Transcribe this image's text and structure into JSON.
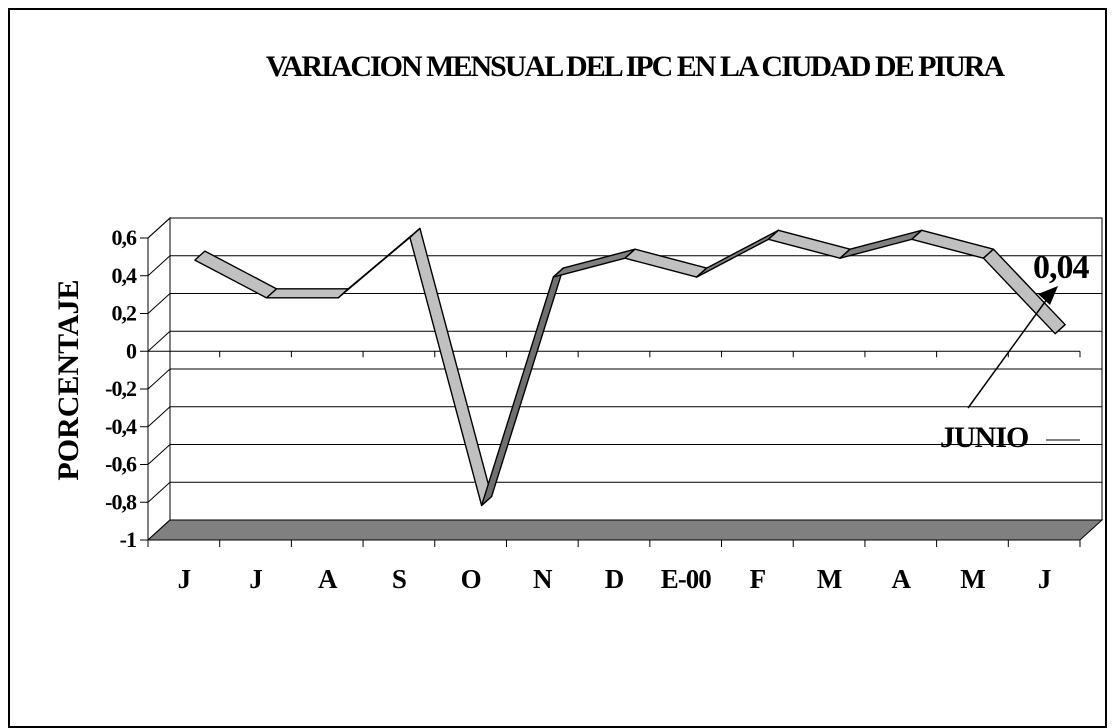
{
  "chart_data": {
    "type": "line",
    "title": "VARIACION MENSUAL DEL IPC EN LA CIUDAD DE PIURA",
    "ylabel": "PORCENTAJE",
    "xlabel": "",
    "categories": [
      "J",
      "J",
      "A",
      "S",
      "O",
      "N",
      "D",
      "E-00",
      "F",
      "M",
      "A",
      "M",
      "J"
    ],
    "values": [
      0.43,
      0.23,
      0.23,
      0.55,
      -0.87,
      0.34,
      0.44,
      0.34,
      0.54,
      0.44,
      0.54,
      0.44,
      0.04
    ],
    "ylim": [
      -1,
      0.6
    ],
    "yticks": [
      "0,6",
      "0,4",
      "0,2",
      "0",
      "-0,2",
      "-0,4",
      "-0,6",
      "-0,8",
      "-1"
    ],
    "grid": true,
    "three_d": true,
    "annotations": {
      "last_value": "0,04",
      "last_label": "JUNIO"
    },
    "colors": {
      "ribbon_top": "#c0c0c0",
      "ribbon_side": "#808080",
      "floor": "#808080",
      "line": "#000000"
    }
  }
}
